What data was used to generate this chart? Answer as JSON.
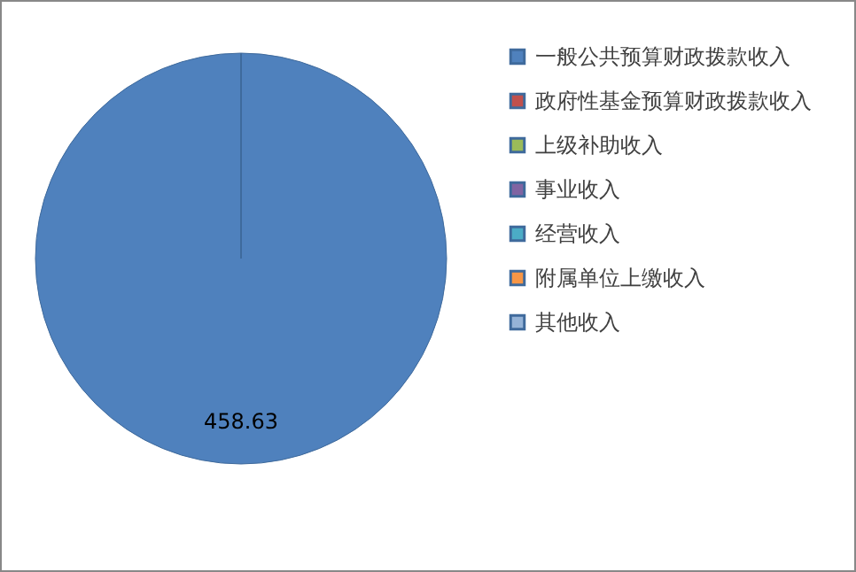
{
  "chart_data": {
    "type": "pie",
    "categories": [
      "一般公共预算财政拨款收入",
      "政府性基金预算财政拨款收入",
      "上级补助收入",
      "事业收入",
      "经营收入",
      "附属单位上缴收入",
      "其他收入"
    ],
    "values": [
      458.63,
      0,
      0,
      0,
      0,
      0,
      0
    ],
    "colors": [
      "#4f81bd",
      "#c0504d",
      "#9bbb59",
      "#8064a2",
      "#4bacc6",
      "#f79646",
      "#95b3d7"
    ],
    "value_labels": [
      "458.63",
      null,
      null,
      null,
      null,
      null,
      null
    ],
    "legend": "right"
  }
}
